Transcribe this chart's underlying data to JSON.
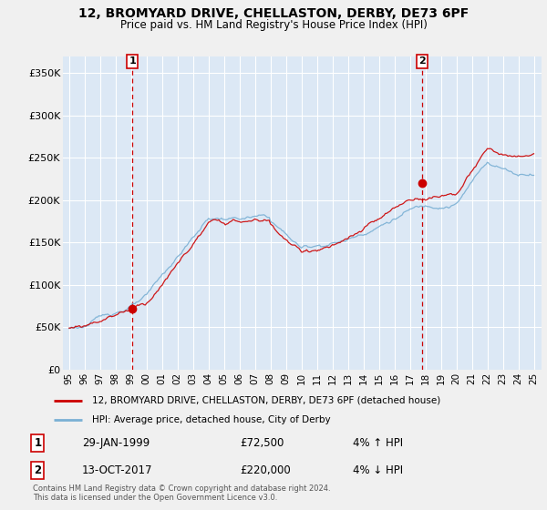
{
  "title": "12, BROMYARD DRIVE, CHELLASTON, DERBY, DE73 6PF",
  "subtitle": "Price paid vs. HM Land Registry's House Price Index (HPI)",
  "legend_line1": "12, BROMYARD DRIVE, CHELLASTON, DERBY, DE73 6PF (detached house)",
  "legend_line2": "HPI: Average price, detached house, City of Derby",
  "annotation1_date": "29-JAN-1999",
  "annotation1_price": "£72,500",
  "annotation1_hpi": "4% ↑ HPI",
  "annotation2_date": "13-OCT-2017",
  "annotation2_price": "£220,000",
  "annotation2_hpi": "4% ↓ HPI",
  "footer": "Contains HM Land Registry data © Crown copyright and database right 2024.\nThis data is licensed under the Open Government Licence v3.0.",
  "ylim": [
    0,
    370000
  ],
  "sale1_x": 1999.08,
  "sale1_y": 72500,
  "sale2_x": 2017.79,
  "sale2_y": 220000,
  "background_color": "#f0f0f0",
  "plot_background": "#dce8f5",
  "grid_color": "#ffffff",
  "line_color_property": "#cc0000",
  "line_color_hpi": "#7ab0d4",
  "ytick_labels": [
    "£0",
    "£50K",
    "£100K",
    "£150K",
    "£200K",
    "£250K",
    "£300K",
    "£350K"
  ],
  "ytick_values": [
    0,
    50000,
    100000,
    150000,
    200000,
    250000,
    300000,
    350000
  ],
  "xlim_left": 1994.6,
  "xlim_right": 2025.5
}
